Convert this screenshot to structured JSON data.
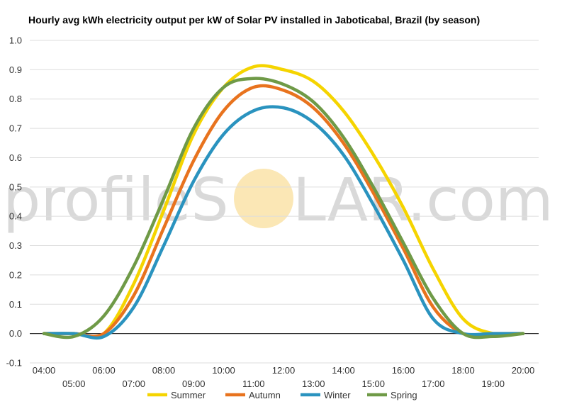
{
  "colors": {
    "summer": "#f5d400",
    "autumn": "#e8731e",
    "winter": "#2a93bf",
    "spring": "#6f9a47",
    "grid": "#dddddd",
    "zero_line": "#333333",
    "watermark_sun": "#fbe7b5"
  },
  "watermark": {
    "left": "profileS",
    "right": "LAR.com"
  },
  "chart_data": {
    "type": "line",
    "title": "Hourly avg kWh electricity output per kW of Solar PV installed in Jaboticabal, Brazil (by season)",
    "xlabel": "",
    "ylabel": "",
    "ylim": [
      -0.1,
      1.0
    ],
    "yticks": [
      "1.0",
      "0.9",
      "0.8",
      "0.7",
      "0.6",
      "0.5",
      "0.4",
      "0.3",
      "0.2",
      "0.1",
      "0.0",
      "-0.1"
    ],
    "grid": true,
    "legend_position": "bottom",
    "x": [
      "04:00",
      "05:00",
      "06:00",
      "07:00",
      "08:00",
      "09:00",
      "10:00",
      "11:00",
      "12:00",
      "13:00",
      "14:00",
      "15:00",
      "16:00",
      "17:00",
      "18:00",
      "19:00",
      "20:00"
    ],
    "series": [
      {
        "name": "Summer",
        "color": "#f5d400",
        "values": [
          0.0,
          0.0,
          0.0,
          0.17,
          0.42,
          0.68,
          0.84,
          0.91,
          0.9,
          0.86,
          0.76,
          0.61,
          0.43,
          0.22,
          0.05,
          0.0,
          0.0
        ]
      },
      {
        "name": "Autumn",
        "color": "#e8731e",
        "values": [
          0.0,
          0.0,
          0.0,
          0.13,
          0.36,
          0.59,
          0.76,
          0.84,
          0.83,
          0.77,
          0.65,
          0.48,
          0.29,
          0.09,
          0.0,
          0.0,
          0.0
        ]
      },
      {
        "name": "Winter",
        "color": "#2a93bf",
        "values": [
          0.0,
          0.0,
          -0.01,
          0.09,
          0.3,
          0.52,
          0.68,
          0.76,
          0.77,
          0.72,
          0.61,
          0.44,
          0.25,
          0.05,
          0.0,
          0.0,
          0.0
        ]
      },
      {
        "name": "Spring",
        "color": "#6f9a47",
        "values": [
          0.0,
          -0.01,
          0.06,
          0.23,
          0.46,
          0.7,
          0.84,
          0.87,
          0.85,
          0.79,
          0.67,
          0.5,
          0.31,
          0.12,
          0.0,
          -0.01,
          0.0
        ]
      }
    ]
  }
}
